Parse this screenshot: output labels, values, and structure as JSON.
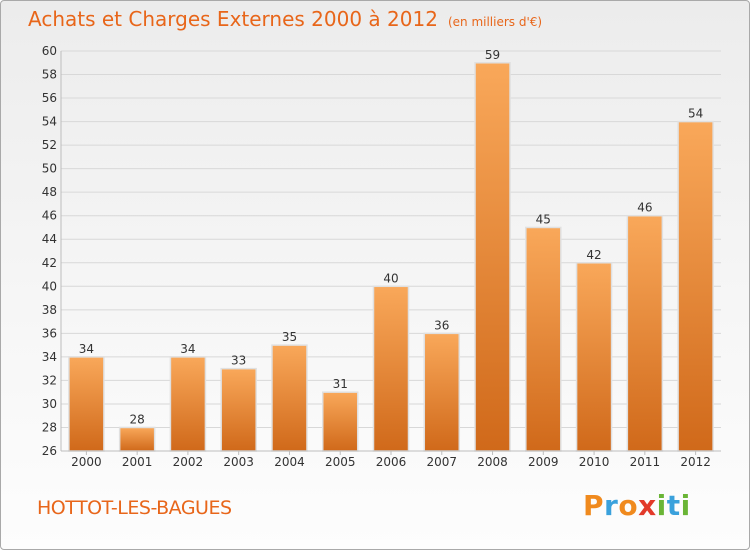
{
  "title": "Achats et Charges Externes 2000 à 2012",
  "unit_note": "(en milliers d'€)",
  "town": "HOTTOT-LES-BAGUES",
  "logo": {
    "text": "Proxiti",
    "letters": [
      {
        "ch": "P",
        "color": "#f08a1e"
      },
      {
        "ch": "r",
        "color": "#3aa1dc"
      },
      {
        "ch": "o",
        "color": "#f08a1e"
      },
      {
        "ch": "x",
        "color": "#e23a2a"
      },
      {
        "ch": "i",
        "color": "#6ab536"
      },
      {
        "ch": "t",
        "color": "#3aa1dc"
      },
      {
        "ch": "i",
        "color": "#6ab536"
      }
    ]
  },
  "colors": {
    "bar_top": "#f9a85a",
    "bar_bottom": "#d0691a",
    "bar_edge": "#e0e0e0",
    "title": "#e8661a",
    "grid": "#d8d8d8",
    "axis": "#bdbdbd"
  },
  "chart_data": {
    "type": "bar",
    "title": "Achats et Charges Externes 2000 à 2012",
    "categories": [
      "2000",
      "2001",
      "2002",
      "2003",
      "2004",
      "2005",
      "2006",
      "2007",
      "2008",
      "2009",
      "2010",
      "2011",
      "2012"
    ],
    "values": [
      34,
      28,
      34,
      33,
      35,
      31,
      40,
      36,
      59,
      45,
      42,
      46,
      54
    ],
    "ylim": [
      26,
      60
    ],
    "yticks": [
      26,
      28,
      30,
      32,
      34,
      36,
      38,
      40,
      42,
      44,
      46,
      48,
      50,
      52,
      54,
      56,
      58,
      60
    ],
    "grid": true,
    "xlabel": "",
    "ylabel": ""
  }
}
